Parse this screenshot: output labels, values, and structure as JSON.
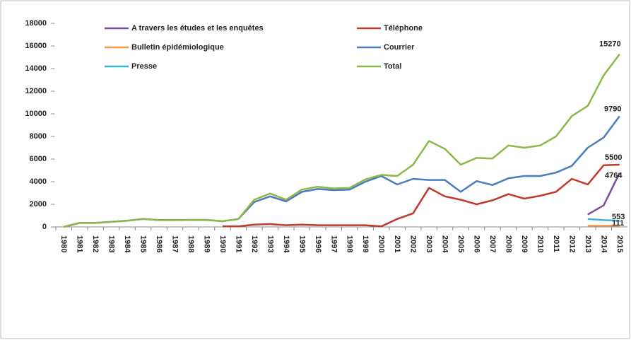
{
  "chart_data": {
    "type": "line",
    "categories": [
      "1980",
      "1981",
      "1982",
      "1983",
      "1984",
      "1985",
      "1986",
      "1987",
      "1988",
      "1989",
      "1990",
      "1991",
      "1992",
      "1993",
      "1994",
      "1995",
      "1996",
      "1997",
      "1998",
      "1999",
      "2000",
      "2001",
      "2002",
      "2003",
      "2004",
      "2005",
      "2006",
      "2007",
      "2008",
      "2009",
      "2010",
      "2011",
      "2012",
      "2013",
      "2014",
      "2015"
    ],
    "series": [
      {
        "name": "A travers les études et les enquêtes",
        "color": "#7b4ea3",
        "values": [
          null,
          null,
          null,
          null,
          null,
          null,
          null,
          null,
          null,
          null,
          null,
          null,
          null,
          null,
          null,
          null,
          null,
          null,
          null,
          null,
          null,
          null,
          null,
          null,
          null,
          null,
          null,
          null,
          null,
          null,
          null,
          null,
          null,
          1100,
          1900,
          4764
        ]
      },
      {
        "name": "Téléphone",
        "color": "#c0392b",
        "values": [
          null,
          null,
          null,
          null,
          null,
          null,
          null,
          null,
          null,
          null,
          50,
          50,
          200,
          250,
          150,
          200,
          150,
          150,
          150,
          150,
          50,
          700,
          1200,
          3450,
          2700,
          2400,
          2000,
          2350,
          2900,
          2500,
          2750,
          3100,
          4250,
          3750,
          5450,
          5500
        ]
      },
      {
        "name": "Bulletin épidémiologique",
        "color": "#f39c4a",
        "values": [
          null,
          null,
          null,
          null,
          null,
          null,
          null,
          null,
          null,
          null,
          null,
          null,
          null,
          null,
          null,
          null,
          null,
          null,
          null,
          null,
          null,
          null,
          null,
          null,
          null,
          null,
          null,
          null,
          null,
          null,
          null,
          null,
          null,
          100,
          100,
          111
        ]
      },
      {
        "name": "Courrier",
        "color": "#4a7cc0",
        "values": [
          0,
          350,
          350,
          450,
          550,
          700,
          600,
          600,
          620,
          620,
          500,
          700,
          2200,
          2700,
          2250,
          3100,
          3350,
          3250,
          3300,
          4000,
          4500,
          3750,
          4250,
          4150,
          4150,
          3100,
          4050,
          3700,
          4300,
          4500,
          4500,
          4800,
          5400,
          7000,
          7900,
          9790
        ]
      },
      {
        "name": "Presse",
        "color": "#3fb6d0",
        "values": [
          null,
          null,
          null,
          null,
          null,
          null,
          null,
          null,
          null,
          null,
          null,
          null,
          null,
          null,
          null,
          null,
          null,
          null,
          null,
          null,
          null,
          null,
          null,
          null,
          null,
          null,
          null,
          null,
          null,
          null,
          null,
          null,
          null,
          700,
          600,
          553
        ]
      },
      {
        "name": "Total",
        "color": "#8db848",
        "values": [
          0,
          350,
          350,
          450,
          550,
          700,
          600,
          600,
          620,
          620,
          500,
          700,
          2400,
          2950,
          2400,
          3300,
          3550,
          3400,
          3450,
          4200,
          4600,
          4500,
          5500,
          7600,
          6900,
          5500,
          6100,
          6050,
          7200,
          7000,
          7200,
          8000,
          9800,
          10700,
          13400,
          15270
        ]
      }
    ],
    "ylim": [
      0,
      18000
    ],
    "yticks": [
      0,
      2000,
      4000,
      6000,
      8000,
      10000,
      12000,
      14000,
      16000,
      18000
    ],
    "grid": false
  }
}
